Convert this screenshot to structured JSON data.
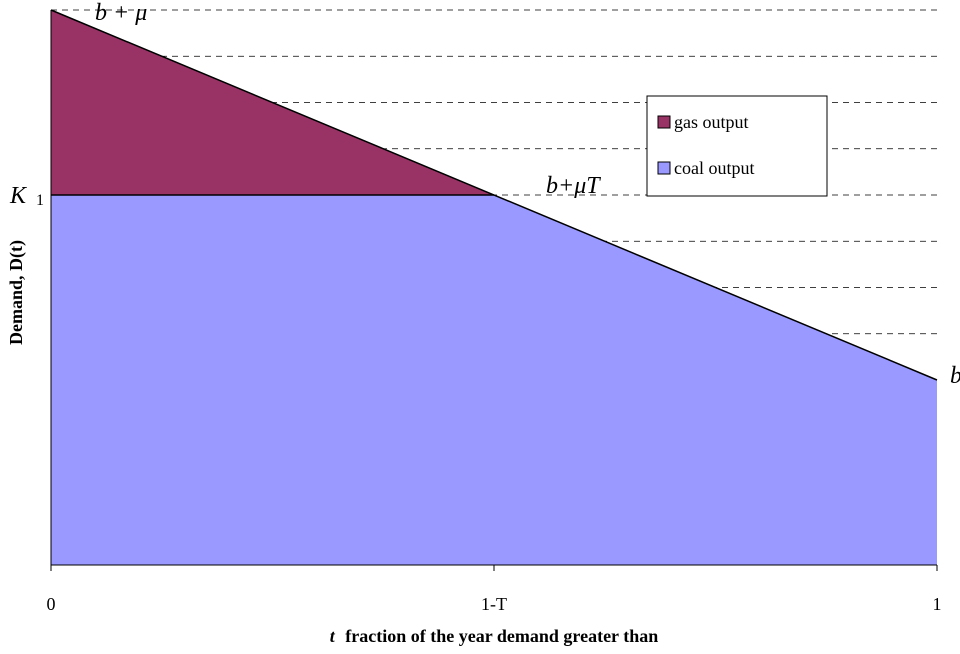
{
  "chart_data": {
    "type": "area",
    "title": "",
    "xlabel_italic": "t",
    "xlabel": "fraction of the year demand greater than",
    "ylabel": "Demand, D(t)",
    "xlim": [
      0,
      1
    ],
    "ylim": [
      0,
      12
    ],
    "grid": "horizontal dashed",
    "legend_placement": "top-right",
    "x_ticks": [
      {
        "value": 0,
        "label": "0"
      },
      {
        "value": 0.5,
        "label": "1-T"
      },
      {
        "value": 1,
        "label": "1"
      }
    ],
    "demand_line": {
      "x": [
        0,
        1
      ],
      "y": [
        12,
        4
      ]
    },
    "capacity_level": 8,
    "series": [
      {
        "name": "gas output",
        "color": "#993366"
      },
      {
        "name": "coal output",
        "color": "#9999ff"
      }
    ],
    "annotations": {
      "top_left": "b + μ",
      "k1_main": "K",
      "k1_sub": "1",
      "mid": "b+μT",
      "right": "b"
    },
    "colors": {
      "gas": "#993366",
      "coal": "#9999ff",
      "gridline": "#000000"
    }
  }
}
